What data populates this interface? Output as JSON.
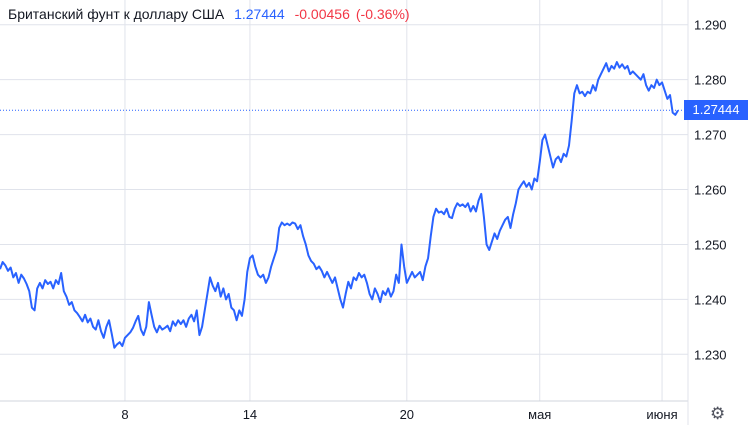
{
  "header": {
    "title": "Британский фунт к доллару США",
    "price": "1.27444",
    "change": "-0.00456",
    "change_pct": "(-0.36%)"
  },
  "price_tag": "1.27444",
  "settings_icon": "gear-icon",
  "colors": {
    "line": "#2962ff",
    "grid": "#e0e3eb",
    "negative": "#f23645",
    "tag": "#2962ff"
  },
  "chart_data": {
    "type": "line",
    "title": "",
    "ylim": [
      1.2215,
      1.2945
    ],
    "yticks": [
      "1.230",
      "1.240",
      "1.250",
      "1.260",
      "1.270",
      "1.280",
      "1.290"
    ],
    "yticks_values": [
      1.23,
      1.24,
      1.25,
      1.26,
      1.27,
      1.28,
      1.29
    ],
    "xticks": [
      "8",
      "14",
      "20",
      "мая",
      "июня"
    ],
    "xticks_index": [
      47,
      94,
      153,
      203,
      249
    ],
    "current_value": 1.27444,
    "grid": true,
    "series": [
      {
        "values": [
          1.2455,
          1.2468,
          1.2462,
          1.2452,
          1.2458,
          1.244,
          1.2448,
          1.243,
          1.2445,
          1.2438,
          1.2428,
          1.2415,
          1.2385,
          1.238,
          1.242,
          1.243,
          1.242,
          1.2435,
          1.2428,
          1.2432,
          1.242,
          1.2435,
          1.2428,
          1.2448,
          1.2415,
          1.2405,
          1.239,
          1.2395,
          1.238,
          1.2375,
          1.2368,
          1.236,
          1.2372,
          1.2358,
          1.2365,
          1.235,
          1.2345,
          1.2362,
          1.2342,
          1.233,
          1.235,
          1.2362,
          1.2338,
          1.2312,
          1.2318,
          1.2322,
          1.2315,
          1.233,
          1.2335,
          1.234,
          1.2348,
          1.236,
          1.237,
          1.2345,
          1.2335,
          1.235,
          1.2395,
          1.2372,
          1.235,
          1.234,
          1.2352,
          1.2345,
          1.2348,
          1.2352,
          1.2342,
          1.236,
          1.2352,
          1.2362,
          1.2355,
          1.2362,
          1.235,
          1.2365,
          1.2372,
          1.236,
          1.238,
          1.2335,
          1.235,
          1.238,
          1.241,
          1.244,
          1.2425,
          1.2415,
          1.243,
          1.2405,
          1.242,
          1.24,
          1.241,
          1.2385,
          1.238,
          1.2362,
          1.238,
          1.237,
          1.24,
          1.245,
          1.2475,
          1.248,
          1.246,
          1.2445,
          1.244,
          1.2445,
          1.243,
          1.244,
          1.246,
          1.2475,
          1.249,
          1.253,
          1.254,
          1.2535,
          1.2538,
          1.2535,
          1.254,
          1.2538,
          1.2528,
          1.2535,
          1.2515,
          1.25,
          1.248,
          1.247,
          1.2465,
          1.2455,
          1.246,
          1.2452,
          1.244,
          1.245,
          1.244,
          1.243,
          1.244,
          1.242,
          1.24,
          1.2385,
          1.241,
          1.2432,
          1.242,
          1.244,
          1.2435,
          1.2448,
          1.244,
          1.2445,
          1.243,
          1.241,
          1.24,
          1.242,
          1.241,
          1.2395,
          1.2415,
          1.2408,
          1.242,
          1.2405,
          1.2415,
          1.2445,
          1.243,
          1.25,
          1.246,
          1.243,
          1.244,
          1.245,
          1.244,
          1.2445,
          1.245,
          1.2435,
          1.246,
          1.2475,
          1.2515,
          1.255,
          1.2565,
          1.2558,
          1.256,
          1.2555,
          1.2565,
          1.255,
          1.2548,
          1.2565,
          1.2575,
          1.257,
          1.2573,
          1.2568,
          1.2575,
          1.256,
          1.257,
          1.256,
          1.258,
          1.2592,
          1.255,
          1.25,
          1.249,
          1.2505,
          1.252,
          1.251,
          1.2525,
          1.2535,
          1.2545,
          1.255,
          1.253,
          1.2555,
          1.2575,
          1.26,
          1.2608,
          1.2615,
          1.2605,
          1.2612,
          1.26,
          1.262,
          1.2615,
          1.265,
          1.269,
          1.27,
          1.268,
          1.266,
          1.264,
          1.2655,
          1.266,
          1.265,
          1.2665,
          1.266,
          1.268,
          1.2725,
          1.2775,
          1.279,
          1.2775,
          1.2778,
          1.277,
          1.2778,
          1.2775,
          1.279,
          1.278,
          1.28,
          1.281,
          1.282,
          1.283,
          1.2815,
          1.2825,
          1.282,
          1.2832,
          1.2822,
          1.2828,
          1.282,
          1.2825,
          1.281,
          1.2815,
          1.281,
          1.2805,
          1.28,
          1.281,
          1.279,
          1.278,
          1.279,
          1.2785,
          1.28,
          1.279,
          1.2795,
          1.278,
          1.2765,
          1.2772,
          1.274,
          1.2736,
          1.2744
        ]
      }
    ]
  }
}
